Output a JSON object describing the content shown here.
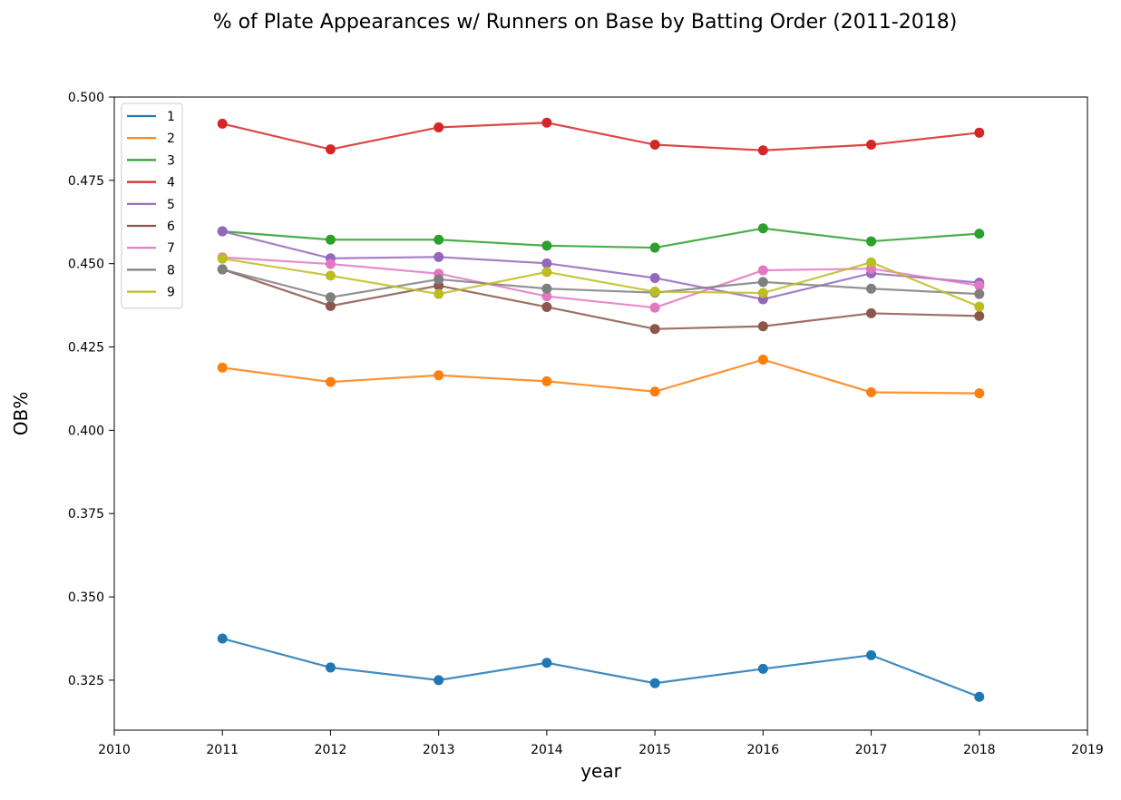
{
  "chart_data": {
    "type": "line",
    "title": "% of Plate Appearances w/ Runners on Base by Batting Order (2011-2018)",
    "xlabel": "year",
    "ylabel": "OB%",
    "xlim": [
      2010,
      2019
    ],
    "ylim": [
      0.31,
      0.5
    ],
    "xticks": [
      2010,
      2011,
      2012,
      2013,
      2014,
      2015,
      2016,
      2017,
      2018,
      2019
    ],
    "yticks": [
      0.325,
      0.35,
      0.375,
      0.4,
      0.425,
      0.45,
      0.475,
      0.5
    ],
    "grid": false,
    "legend_position": "top-left",
    "x": [
      2011,
      2012,
      2013,
      2014,
      2015,
      2016,
      2017,
      2018
    ],
    "series": [
      {
        "name": "1",
        "color": "#1f77b4",
        "values": [
          0.3375,
          0.3288,
          0.325,
          0.3302,
          0.3241,
          0.3284,
          0.3325,
          0.32
        ]
      },
      {
        "name": "2",
        "color": "#ff7f0e",
        "values": [
          0.4188,
          0.4145,
          0.4165,
          0.4147,
          0.4116,
          0.4212,
          0.4114,
          0.4111
        ]
      },
      {
        "name": "3",
        "color": "#2ca02c",
        "values": [
          0.4597,
          0.4572,
          0.4572,
          0.4554,
          0.4548,
          0.4606,
          0.4567,
          0.459
        ]
      },
      {
        "name": "4",
        "color": "#d62728",
        "values": [
          0.492,
          0.4843,
          0.4909,
          0.4923,
          0.4857,
          0.484,
          0.4857,
          0.4893
        ]
      },
      {
        "name": "5",
        "color": "#9467bd",
        "values": [
          0.4597,
          0.4516,
          0.452,
          0.4501,
          0.4457,
          0.4393,
          0.4471,
          0.4443
        ]
      },
      {
        "name": "6",
        "color": "#8c564b",
        "values": [
          0.4483,
          0.4373,
          0.4434,
          0.437,
          0.4304,
          0.4312,
          0.4351,
          0.4343
        ]
      },
      {
        "name": "7",
        "color": "#e377c2",
        "values": [
          0.4519,
          0.4499,
          0.447,
          0.4402,
          0.4368,
          0.448,
          0.4485,
          0.4434
        ]
      },
      {
        "name": "8",
        "color": "#7f7f7f",
        "values": [
          0.4483,
          0.4399,
          0.4453,
          0.4425,
          0.4413,
          0.4445,
          0.4425,
          0.4409
        ]
      },
      {
        "name": "9",
        "color": "#bcbd22",
        "values": [
          0.4515,
          0.4464,
          0.4409,
          0.4475,
          0.4416,
          0.4412,
          0.4504,
          0.4371
        ]
      }
    ]
  }
}
